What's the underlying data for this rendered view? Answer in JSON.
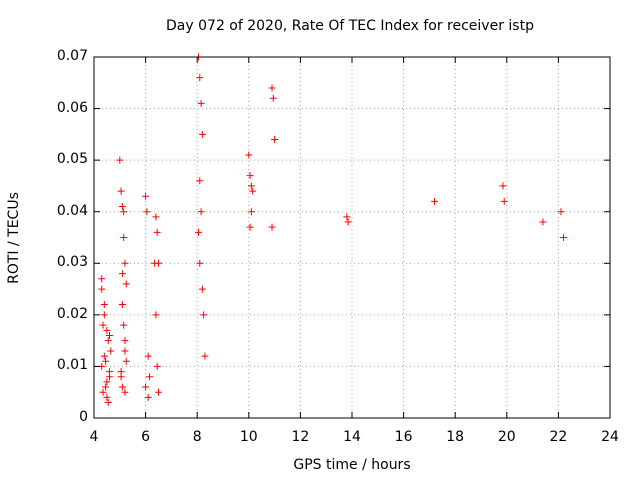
{
  "chart_data": {
    "type": "scatter",
    "title": "Day 072 of 2020, Rate Of TEC Index for receiver istp",
    "xlabel": "GPS time / hours",
    "ylabel": "ROTI / TECUs",
    "xlim": [
      4,
      24
    ],
    "ylim": [
      0,
      0.07
    ],
    "xticks": [
      4,
      6,
      8,
      10,
      12,
      14,
      16,
      18,
      20,
      22,
      24
    ],
    "xtick_labels": [
      "4",
      "6",
      "8",
      "10",
      "12",
      "14",
      "16",
      "18",
      "20",
      "22",
      "24"
    ],
    "yticks": [
      0,
      0.01,
      0.02,
      0.03,
      0.04,
      0.05,
      0.06,
      0.07
    ],
    "ytick_labels": [
      "0",
      "0.01",
      "0.02",
      "0.03",
      "0.04",
      "0.05",
      "0.06",
      "0.07"
    ],
    "grid": true,
    "marker": "+",
    "color": "#ff0000",
    "series": [
      {
        "name": "ROTI",
        "x": [
          4.3,
          4.35,
          4.4,
          4.45,
          4.5,
          4.55,
          4.6,
          4.3,
          4.4,
          4.5,
          4.6,
          4.65,
          4.35,
          4.45,
          4.55,
          4.4,
          4.5,
          4.3,
          4.6,
          5.0,
          5.05,
          5.1,
          5.15,
          5.2,
          5.25,
          5.1,
          5.15,
          5.2,
          5.05,
          5.1,
          5.2,
          5.15,
          5.1,
          5.2,
          5.25,
          5.05,
          6.0,
          6.05,
          6.1,
          6.15,
          6.0,
          6.1,
          6.4,
          6.45,
          6.5,
          6.4,
          6.45,
          6.5,
          6.35,
          8.05,
          8.1,
          8.15,
          8.2,
          8.1,
          8.15,
          8.05,
          8.1,
          8.2,
          8.25,
          8.3,
          10.0,
          10.05,
          10.1,
          10.15,
          10.1,
          10.05,
          10.9,
          10.95,
          11.0,
          10.9,
          13.8,
          13.85,
          17.2,
          19.85,
          19.9,
          21.4,
          22.1,
          22.2
        ],
        "y": [
          0.025,
          0.018,
          0.012,
          0.006,
          0.004,
          0.015,
          0.009,
          0.027,
          0.022,
          0.017,
          0.008,
          0.013,
          0.005,
          0.011,
          0.003,
          0.02,
          0.007,
          0.01,
          0.016,
          0.05,
          0.044,
          0.041,
          0.035,
          0.03,
          0.026,
          0.022,
          0.018,
          0.013,
          0.009,
          0.006,
          0.005,
          0.04,
          0.028,
          0.015,
          0.011,
          0.008,
          0.043,
          0.04,
          0.012,
          0.008,
          0.006,
          0.004,
          0.039,
          0.036,
          0.03,
          0.02,
          0.01,
          0.005,
          0.03,
          0.07,
          0.066,
          0.061,
          0.055,
          0.046,
          0.04,
          0.036,
          0.03,
          0.025,
          0.02,
          0.012,
          0.051,
          0.047,
          0.045,
          0.044,
          0.04,
          0.037,
          0.064,
          0.062,
          0.054,
          0.037,
          0.039,
          0.038,
          0.042,
          0.045,
          0.042,
          0.038,
          0.04,
          0.035
        ]
      }
    ]
  }
}
